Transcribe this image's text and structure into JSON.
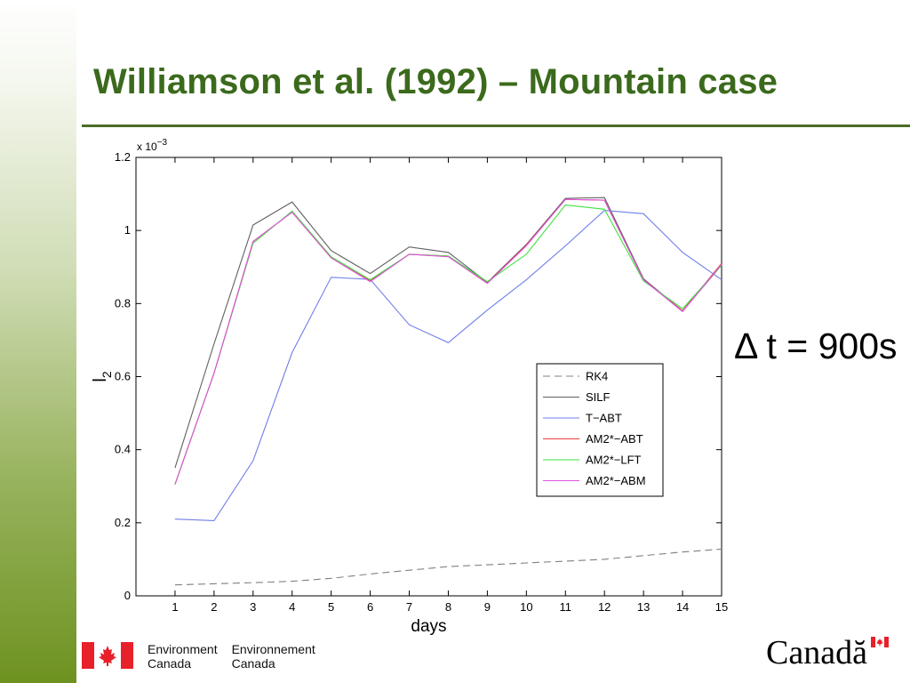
{
  "slide": {
    "title": "Williamson et al. (1992) – Mountain case",
    "timestep_label": "Δ t = 900s"
  },
  "footer": {
    "dept_en_line1": "Environment",
    "dept_en_line2": "Canada",
    "dept_fr_line1": "Environnement",
    "dept_fr_line2": "Canada",
    "wordmark": "Canadă",
    "flag_red": "#e8202a"
  },
  "colors": {
    "title": "#3b6a1c",
    "rule": "#4b6d24"
  },
  "chart_data": {
    "type": "line",
    "xlabel": "days",
    "ylabel": "l",
    "ylabel_subscript": "2",
    "y_multiplier": "x 10",
    "y_multiplier_exp": "−3",
    "xlim": [
      0,
      15
    ],
    "ylim": [
      0,
      1.2
    ],
    "xticks": [
      1,
      2,
      3,
      4,
      5,
      6,
      7,
      8,
      9,
      10,
      11,
      12,
      13,
      14,
      15
    ],
    "yticks": [
      0,
      0.2,
      0.4,
      0.6,
      0.8,
      1,
      1.2
    ],
    "ytick_labels": [
      "0",
      "0.2",
      "0.4",
      "0.6",
      "0.8",
      "1",
      "1.2"
    ],
    "x": [
      1,
      2,
      3,
      4,
      5,
      6,
      7,
      8,
      9,
      10,
      11,
      12,
      13,
      14,
      15
    ],
    "legend_position": "center-right",
    "series": [
      {
        "name": "RK4",
        "color": "#808080",
        "dash": "dashed",
        "values": [
          0.03,
          0.033,
          0.036,
          0.04,
          0.048,
          0.06,
          0.07,
          0.08,
          0.085,
          0.09,
          0.095,
          0.1,
          0.11,
          0.12,
          0.128
        ]
      },
      {
        "name": "SILF",
        "color": "#606060",
        "dash": "solid",
        "values": [
          0.35,
          0.69,
          1.015,
          1.078,
          0.945,
          0.882,
          0.955,
          0.94,
          0.858,
          0.962,
          1.088,
          1.09,
          0.868,
          0.78,
          0.905
        ]
      },
      {
        "name": "T−ABT",
        "color": "#6f7fe8",
        "dash": "solid",
        "values": [
          0.21,
          0.206,
          0.37,
          0.666,
          0.872,
          0.866,
          0.742,
          0.693,
          0.782,
          0.865,
          0.958,
          1.055,
          1.046,
          0.94,
          0.865
        ]
      },
      {
        "name": "AM2*−ABT",
        "color": "#e8403a",
        "dash": "solid",
        "values": [
          0.305,
          0.61,
          0.97,
          1.05,
          0.925,
          0.862,
          0.935,
          0.93,
          0.856,
          0.96,
          1.085,
          1.083,
          0.865,
          0.78,
          0.91
        ]
      },
      {
        "name": "AM2*−LFT",
        "color": "#40e040",
        "dash": "solid",
        "values": [
          0.305,
          0.61,
          0.965,
          1.053,
          0.928,
          0.865,
          0.935,
          0.93,
          0.86,
          0.935,
          1.07,
          1.058,
          0.862,
          0.786,
          0.905
        ]
      },
      {
        "name": "AM2*−ABM",
        "color": "#e055e0",
        "dash": "solid",
        "values": [
          0.305,
          0.61,
          0.97,
          1.05,
          0.925,
          0.86,
          0.935,
          0.928,
          0.855,
          0.958,
          1.085,
          1.083,
          0.865,
          0.778,
          0.908
        ]
      }
    ]
  }
}
